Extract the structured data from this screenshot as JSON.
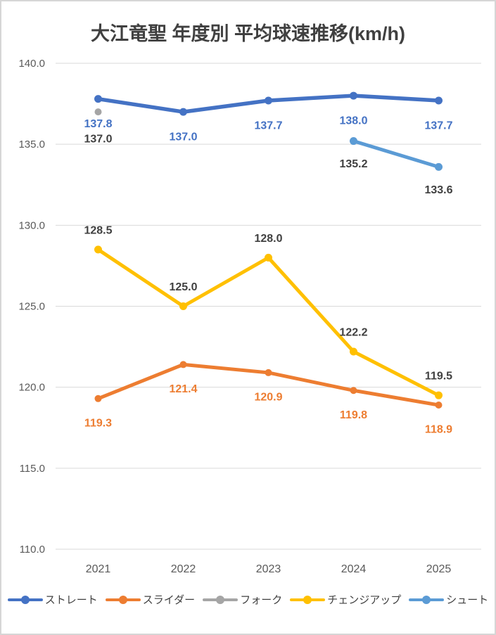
{
  "colors": {
    "background": "#FFFFFF",
    "frame_border": "#D6D6D6",
    "grid": "#D9D9D9",
    "axis_text": "#595959",
    "title_text": "#404040",
    "neutral_label": "#404040",
    "legend_text": "#404040"
  },
  "chart_data": {
    "type": "line",
    "title": "大江竜聖 年度別 平均球速推移(km/h)",
    "xlabel": "",
    "ylabel": "",
    "categories": [
      "2021",
      "2022",
      "2023",
      "2024",
      "2025"
    ],
    "ylim": [
      110,
      140
    ],
    "ytick_step": 5,
    "ytick_labels": [
      "140.0",
      "135.0",
      "130.0",
      "125.0",
      "120.0",
      "115.0",
      "110.0"
    ],
    "grid": true,
    "legend_position": "bottom",
    "series": [
      {
        "key": "straight",
        "name": "ストレート",
        "color": "#4472C4",
        "x": [
          "2021",
          "2022",
          "2023",
          "2024",
          "2025"
        ],
        "values": [
          137.8,
          137.0,
          137.7,
          138.0,
          137.7
        ],
        "labels": [
          "137.8",
          "137.0",
          "137.7",
          "138.0",
          "137.7"
        ],
        "label_color": "#4472C4",
        "label_side": "below"
      },
      {
        "key": "slider",
        "name": "スライダー",
        "color": "#ED7D31",
        "x": [
          "2021",
          "2022",
          "2023",
          "2024",
          "2025"
        ],
        "values": [
          119.3,
          121.4,
          120.9,
          119.8,
          118.9
        ],
        "labels": [
          "119.3",
          "121.4",
          "120.9",
          "119.8",
          "118.9"
        ],
        "label_color": "#ED7D31",
        "label_side": "below"
      },
      {
        "key": "fork",
        "name": "フォーク",
        "color": "#A5A5A5",
        "x": [
          "2021"
        ],
        "values": [
          137.0
        ],
        "labels": [
          "137.0"
        ],
        "label_color": "#404040",
        "label_side": "below"
      },
      {
        "key": "changeup",
        "name": "チェンジアップ",
        "color": "#FFC000",
        "x": [
          "2021",
          "2022",
          "2023",
          "2024",
          "2025"
        ],
        "values": [
          128.5,
          125.0,
          128.0,
          122.2,
          119.5
        ],
        "labels": [
          "128.5",
          "125.0",
          "128.0",
          "122.2",
          "119.5"
        ],
        "label_color": "#404040",
        "label_side": "above"
      },
      {
        "key": "shoot",
        "name": "シュート",
        "color": "#5B9BD5",
        "x": [
          "2024",
          "2025"
        ],
        "values": [
          135.2,
          133.6
        ],
        "labels": [
          "135.2",
          "133.6"
        ],
        "label_color": "#404040",
        "label_side": "below"
      }
    ]
  }
}
